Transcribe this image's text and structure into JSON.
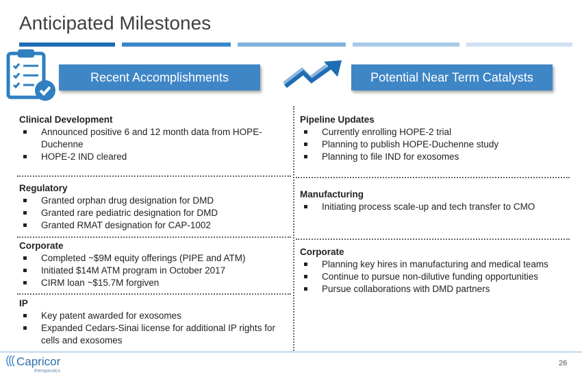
{
  "header": {
    "title": "Anticipated Milestones"
  },
  "banners": [
    "Recent Accomplishments",
    "Potential Near Term Catalysts"
  ],
  "left": [
    {
      "heading": "Clinical Development",
      "items": [
        "Announced positive 6 and 12 month data from HOPE-Duchenne",
        "HOPE-2 IND cleared"
      ]
    },
    {
      "heading": "Regulatory",
      "items": [
        "Granted orphan drug designation for DMD",
        "Granted rare pediatric designation for DMD",
        "Granted RMAT designation for CAP-1002"
      ]
    },
    {
      "heading": "Corporate",
      "items": [
        "Completed ~$9M equity offerings (PIPE and ATM)",
        "Initiated $14M ATM program in October 2017",
        "CIRM loan ~$15.7M forgiven"
      ]
    },
    {
      "heading": "IP",
      "items": [
        "Key patent awarded for exosomes",
        "Expanded Cedars-Sinai license for additional IP rights for cells and exosomes"
      ]
    }
  ],
  "right": [
    {
      "heading": "Pipeline Updates",
      "items": [
        "Currently enrolling HOPE-2 trial",
        "Planning to publish HOPE-Duchenne study",
        "Planning to file IND for exosomes"
      ]
    },
    {
      "heading": "Manufacturing",
      "items": [
        "Initiating process scale-up and tech transfer to CMO"
      ]
    },
    {
      "heading": "Corporate",
      "items": [
        "Planning key hires in manufacturing and medical teams",
        "Continue to pursue non-dilutive funding opportunities",
        "Pursue collaborations with DMD partners"
      ]
    }
  ],
  "footer": {
    "logo": "Capricor",
    "logo_sub": "therapeutics",
    "page": "26"
  }
}
